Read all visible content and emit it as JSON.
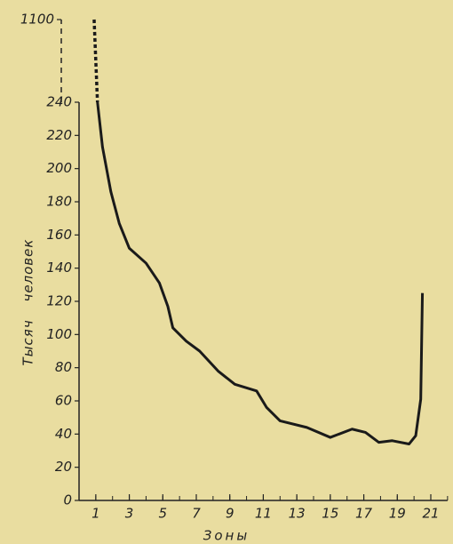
{
  "chart_data": {
    "type": "line",
    "xlabel": "Зоны",
    "ylabel": "Тысяч человек",
    "x": [
      0.9,
      1.1,
      1.4,
      1.9,
      2.4,
      3,
      4,
      4.8,
      5.3,
      5.6,
      6.4,
      7.2,
      8.3,
      9.3,
      10.6,
      11.2,
      12,
      13.6,
      15,
      16.3,
      17.1,
      17.9,
      18.7,
      19.7,
      20.1,
      20.4,
      20.5
    ],
    "series": [
      {
        "color": "#1a1a1a",
        "values": [
          1100,
          240,
          213,
          186,
          167,
          152,
          143,
          131,
          117,
          104,
          96,
          90,
          78,
          70,
          66,
          56,
          48,
          44,
          38,
          43,
          41,
          35,
          36,
          34,
          39,
          61,
          125
        ]
      }
    ],
    "xlim": [
      0,
      22
    ],
    "xticks": [
      1,
      3,
      5,
      7,
      9,
      11,
      13,
      15,
      17,
      19,
      21
    ],
    "ylim": [
      0,
      1100
    ],
    "yticks": [
      0,
      20,
      40,
      60,
      80,
      100,
      120,
      140,
      160,
      180,
      200,
      220,
      240,
      1100
    ],
    "axis_break": [
      240,
      1100
    ],
    "grid": false
  }
}
